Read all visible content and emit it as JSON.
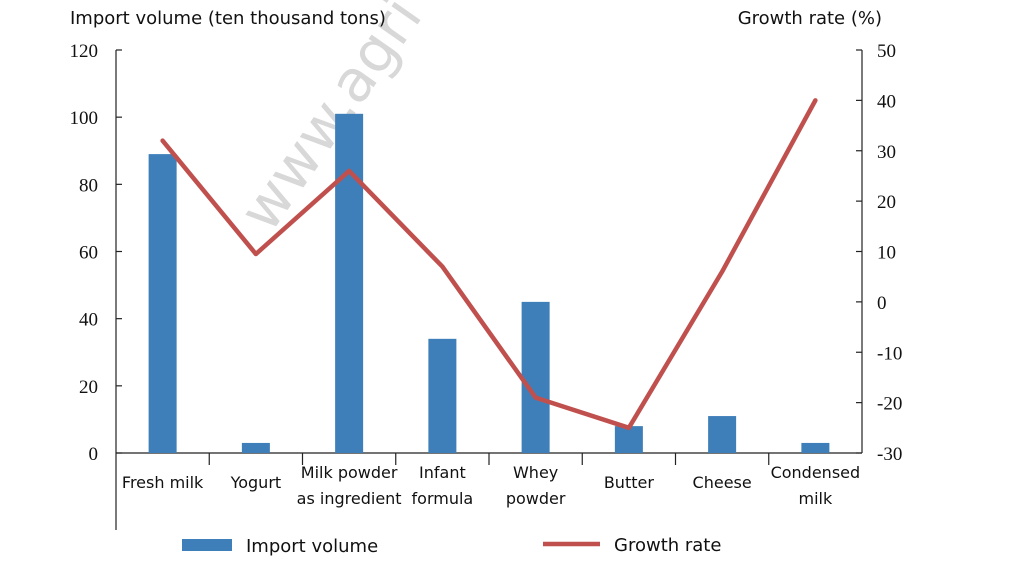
{
  "watermark": "www.agri",
  "chart_data": {
    "type": "bar",
    "categories": [
      [
        "Fresh milk"
      ],
      [
        "Yogurt"
      ],
      [
        "Milk powder",
        "as ingredient"
      ],
      [
        "Infant",
        "formula"
      ],
      [
        "Whey",
        "powder"
      ],
      [
        "Butter"
      ],
      [
        "Cheese"
      ],
      [
        "Condensed",
        "milk"
      ]
    ],
    "series": [
      {
        "name": "Import volume",
        "type": "bar",
        "axis": "left",
        "color": "#3f7fb9",
        "values": [
          89,
          3,
          101,
          34,
          45,
          8,
          11,
          3
        ]
      },
      {
        "name": "Growth rate",
        "type": "line",
        "axis": "right",
        "color": "#c0504d",
        "values": [
          32,
          9.5,
          26,
          7,
          -19,
          -25,
          6,
          40
        ]
      }
    ],
    "ylabel_left": "Import volume (ten thousand tons)",
    "ylabel_right": "Growth rate (%)",
    "ylim_left": [
      0,
      120
    ],
    "ylim_right": [
      -30,
      50
    ],
    "yticks_left": [
      0,
      20,
      40,
      60,
      80,
      100,
      120
    ],
    "yticks_right": [
      -30,
      -20,
      -10,
      0,
      10,
      20,
      30,
      40,
      50
    ],
    "grid": false,
    "legend_position": "bottom"
  }
}
